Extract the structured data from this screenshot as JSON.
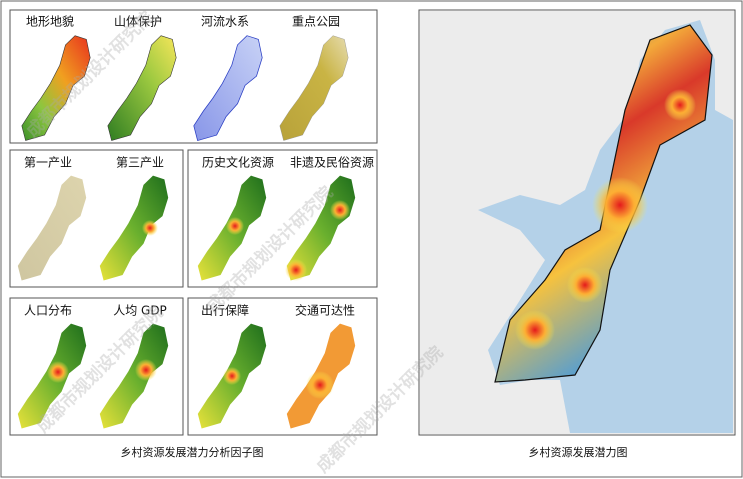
{
  "factor_figure": {
    "caption": "乡村资源发展潜力分析因子图",
    "panels": [
      {
        "labels": [
          "地形地貌",
          "山体保护",
          "河流水系",
          "重点公园"
        ]
      },
      {
        "labels": [
          "第一产业",
          "第三产业"
        ]
      },
      {
        "labels": [
          "历史文化资源",
          "非遗及民俗资源"
        ]
      },
      {
        "labels": [
          "人口分布",
          "人均 GDP"
        ]
      },
      {
        "labels": [
          "出行保障",
          "交通可达性"
        ]
      }
    ]
  },
  "potential_map": {
    "caption": "乡村资源发展潜力图"
  },
  "watermark": "成都市规划设计研究院"
}
